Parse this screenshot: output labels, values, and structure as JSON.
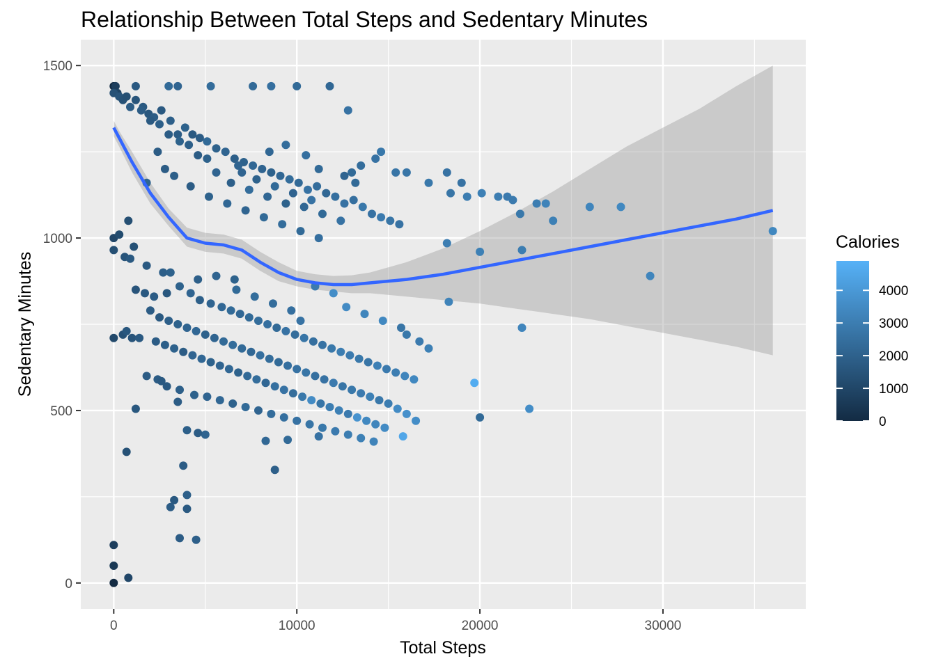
{
  "chart_data": {
    "type": "scatter",
    "title": "Relationship Between Total Steps and Sedentary Minutes",
    "xlabel": "Total Steps",
    "ylabel": "Sedentary Minutes",
    "xlim": [
      -1800,
      37800
    ],
    "ylim": [
      -75,
      1575
    ],
    "x_ticks": [
      0,
      10000,
      20000,
      30000
    ],
    "x_tick_labels": [
      "0",
      "10000",
      "20000",
      "30000"
    ],
    "y_ticks": [
      0,
      500,
      1000,
      1500
    ],
    "y_tick_labels": [
      "0",
      "500",
      "1000",
      "1500"
    ],
    "grid": true,
    "panel_background": "#ebebeb",
    "color_scale": {
      "title": "Calories",
      "low_color": "#132b43",
      "high_color": "#56b1f7",
      "min": 0,
      "max": 4900,
      "ticks": [
        0,
        1000,
        2000,
        3000,
        4000
      ],
      "tick_labels": [
        "0",
        "1000",
        "2000",
        "3000",
        "4000"
      ]
    },
    "smooth_line": {
      "color": "#3366ff",
      "x": [
        0,
        300,
        1000,
        2000,
        3000,
        4000,
        5000,
        6000,
        7000,
        8000,
        9000,
        10000,
        11000,
        12000,
        13000,
        14000,
        16000,
        18000,
        20000,
        22000,
        24000,
        26000,
        28000,
        30000,
        32000,
        34000,
        36000
      ],
      "y": [
        1320,
        1290,
        1220,
        1130,
        1060,
        1000,
        985,
        980,
        965,
        930,
        900,
        880,
        870,
        865,
        865,
        870,
        880,
        895,
        915,
        935,
        955,
        975,
        995,
        1015,
        1035,
        1055,
        1080
      ]
    },
    "confidence_band": {
      "color": "#999999",
      "x": [
        0,
        300,
        1000,
        2000,
        3000,
        4000,
        5000,
        6000,
        7000,
        8000,
        9000,
        10000,
        11000,
        12000,
        13000,
        14000,
        16000,
        18000,
        20000,
        22000,
        24000,
        26000,
        28000,
        30000,
        32000,
        34000,
        36000
      ],
      "upper": [
        1340,
        1310,
        1250,
        1160,
        1085,
        1030,
        1015,
        1010,
        995,
        960,
        930,
        905,
        895,
        890,
        892,
        900,
        930,
        970,
        1020,
        1075,
        1135,
        1200,
        1265,
        1320,
        1375,
        1440,
        1500
      ],
      "lower": [
        1295,
        1265,
        1190,
        1100,
        1035,
        975,
        960,
        955,
        940,
        905,
        875,
        860,
        850,
        845,
        840,
        840,
        830,
        820,
        810,
        795,
        780,
        765,
        745,
        725,
        705,
        685,
        660
      ]
    },
    "points": [
      [
        0,
        1440,
        0
      ],
      [
        100,
        1440,
        700
      ],
      [
        200,
        1420,
        900
      ],
      [
        0,
        1420,
        1400
      ],
      [
        300,
        1410,
        1500
      ],
      [
        500,
        1400,
        1400
      ],
      [
        700,
        1410,
        1300
      ],
      [
        900,
        1380,
        1800
      ],
      [
        1200,
        1400,
        1500
      ],
      [
        1600,
        1380,
        1700
      ],
      [
        1900,
        1360,
        1600
      ],
      [
        2200,
        1350,
        1800
      ],
      [
        2600,
        1370,
        1700
      ],
      [
        3100,
        1340,
        1900
      ],
      [
        3500,
        1300,
        1800
      ],
      [
        3900,
        1320,
        2000
      ],
      [
        4300,
        1300,
        1700
      ],
      [
        4700,
        1290,
        1800
      ],
      [
        5100,
        1280,
        2300
      ],
      [
        5600,
        1260,
        2000
      ],
      [
        6100,
        1250,
        2100
      ],
      [
        6600,
        1230,
        1900
      ],
      [
        7100,
        1220,
        2000
      ],
      [
        7600,
        1210,
        2200
      ],
      [
        8100,
        1200,
        2100
      ],
      [
        8600,
        1190,
        2000
      ],
      [
        9100,
        1180,
        2200
      ],
      [
        9600,
        1170,
        2400
      ],
      [
        10100,
        1160,
        2300
      ],
      [
        10600,
        1140,
        2600
      ],
      [
        11100,
        1150,
        2400
      ],
      [
        11600,
        1130,
        2200
      ],
      [
        12100,
        1120,
        2500
      ],
      [
        12600,
        1100,
        2600
      ],
      [
        13100,
        1110,
        2500
      ],
      [
        13600,
        1090,
        2800
      ],
      [
        14100,
        1070,
        2600
      ],
      [
        14600,
        1060,
        2900
      ],
      [
        15100,
        1050,
        2700
      ],
      [
        15600,
        1040,
        2600
      ],
      [
        2800,
        1200,
        1800
      ],
      [
        3300,
        1180,
        1900
      ],
      [
        4200,
        1150,
        1800
      ],
      [
        5200,
        1120,
        2000
      ],
      [
        6200,
        1100,
        2200
      ],
      [
        7200,
        1080,
        2100
      ],
      [
        8200,
        1060,
        2300
      ],
      [
        9200,
        1040,
        2400
      ],
      [
        10200,
        1020,
        2300
      ],
      [
        11200,
        1000,
        2500
      ],
      [
        5600,
        1190,
        2100
      ],
      [
        6400,
        1160,
        1900
      ],
      [
        7400,
        1140,
        2400
      ],
      [
        8400,
        1120,
        2200
      ],
      [
        9400,
        1100,
        2000
      ],
      [
        10400,
        1090,
        2200
      ],
      [
        11400,
        1070,
        2300
      ],
      [
        12400,
        1050,
        2600
      ],
      [
        6800,
        1210,
        2100
      ],
      [
        7800,
        1170,
        2000
      ],
      [
        8800,
        1150,
        2300
      ],
      [
        9800,
        1130,
        2100
      ],
      [
        10800,
        1110,
        2600
      ],
      [
        5100,
        1230,
        2000
      ],
      [
        4600,
        1240,
        1800
      ],
      [
        4100,
        1270,
        1900
      ],
      [
        3600,
        1280,
        2000
      ],
      [
        3000,
        1300,
        1800
      ],
      [
        2500,
        1330,
        1900
      ],
      [
        2000,
        1340,
        1700
      ],
      [
        1500,
        1370,
        1800
      ],
      [
        2400,
        1250,
        1800
      ],
      [
        1800,
        1160,
        2100
      ],
      [
        7000,
        1190,
        2100
      ],
      [
        8500,
        1250,
        2200
      ],
      [
        9400,
        1270,
        2400
      ],
      [
        10500,
        1240,
        2500
      ],
      [
        11200,
        1200,
        2300
      ],
      [
        12600,
        1180,
        2100
      ],
      [
        13200,
        1160,
        2300
      ],
      [
        14300,
        1230,
        2600
      ],
      [
        16000,
        1190,
        2700
      ],
      [
        17200,
        1160,
        2800
      ],
      [
        18400,
        1130,
        2700
      ],
      [
        19300,
        1120,
        3000
      ],
      [
        20100,
        1130,
        3100
      ],
      [
        21000,
        1120,
        3000
      ],
      [
        21800,
        1110,
        2900
      ],
      [
        22200,
        1070,
        2800
      ],
      [
        23100,
        1100,
        3000
      ],
      [
        23600,
        1100,
        3200
      ],
      [
        24000,
        1050,
        3100
      ],
      [
        26000,
        1090,
        3300
      ],
      [
        27700,
        1090,
        3400
      ],
      [
        13500,
        1210,
        2400
      ],
      [
        13000,
        1190,
        2300
      ],
      [
        14600,
        1250,
        2800
      ],
      [
        15400,
        1190,
        2700
      ],
      [
        18200,
        1190,
        2600
      ],
      [
        19000,
        1160,
        2600
      ],
      [
        21500,
        1120,
        2900
      ],
      [
        12800,
        1370,
        2600
      ],
      [
        11800,
        1440,
        2200
      ],
      [
        10000,
        1440,
        2300
      ],
      [
        8600,
        1440,
        2500
      ],
      [
        7600,
        1440,
        2300
      ],
      [
        5300,
        1440,
        2400
      ],
      [
        3500,
        1440,
        2100
      ],
      [
        3000,
        1440,
        2300
      ],
      [
        1200,
        1440,
        1700
      ],
      [
        20000,
        960,
        3100
      ],
      [
        22300,
        965,
        3000
      ],
      [
        29300,
        890,
        3300
      ],
      [
        36000,
        1020,
        3400
      ],
      [
        18200,
        985,
        3000
      ],
      [
        18300,
        815,
        3200
      ],
      [
        22300,
        740,
        3300
      ],
      [
        19700,
        580,
        4700
      ],
      [
        20000,
        480,
        2300
      ],
      [
        22700,
        505,
        3600
      ],
      [
        0,
        1000,
        1000
      ],
      [
        300,
        1010,
        1200
      ],
      [
        800,
        1050,
        1300
      ],
      [
        1100,
        975,
        1400
      ],
      [
        600,
        945,
        1500
      ],
      [
        0,
        965,
        1300
      ],
      [
        900,
        940,
        1700
      ],
      [
        1800,
        920,
        1700
      ],
      [
        2700,
        900,
        1900
      ],
      [
        3100,
        900,
        2000
      ],
      [
        1200,
        850,
        1500
      ],
      [
        1700,
        840,
        1700
      ],
      [
        2200,
        830,
        1800
      ],
      [
        2900,
        840,
        1600
      ],
      [
        3600,
        860,
        2000
      ],
      [
        4200,
        840,
        2100
      ],
      [
        4700,
        820,
        1900
      ],
      [
        5300,
        810,
        2100
      ],
      [
        5900,
        800,
        2200
      ],
      [
        6400,
        790,
        2300
      ],
      [
        6900,
        780,
        2200
      ],
      [
        7400,
        770,
        2300
      ],
      [
        7900,
        760,
        2400
      ],
      [
        8400,
        750,
        2500
      ],
      [
        8900,
        740,
        2300
      ],
      [
        9400,
        730,
        2600
      ],
      [
        9900,
        720,
        2400
      ],
      [
        10400,
        710,
        2700
      ],
      [
        10900,
        700,
        2500
      ],
      [
        11400,
        690,
        2600
      ],
      [
        11900,
        680,
        2800
      ],
      [
        12400,
        670,
        3000
      ],
      [
        12900,
        660,
        2900
      ],
      [
        13400,
        650,
        2800
      ],
      [
        13900,
        640,
        2700
      ],
      [
        14400,
        630,
        3100
      ],
      [
        14900,
        620,
        2900
      ],
      [
        15400,
        610,
        3000
      ],
      [
        15900,
        600,
        3300
      ],
      [
        16400,
        590,
        3400
      ],
      [
        2000,
        790,
        1800
      ],
      [
        2500,
        770,
        1700
      ],
      [
        3000,
        760,
        1900
      ],
      [
        3500,
        750,
        2000
      ],
      [
        4000,
        740,
        2100
      ],
      [
        4500,
        730,
        2200
      ],
      [
        5000,
        720,
        2000
      ],
      [
        5500,
        710,
        2100
      ],
      [
        6000,
        700,
        2300
      ],
      [
        6500,
        690,
        2400
      ],
      [
        7000,
        680,
        2300
      ],
      [
        7500,
        670,
        2200
      ],
      [
        8000,
        660,
        2500
      ],
      [
        8500,
        650,
        2400
      ],
      [
        9000,
        640,
        2300
      ],
      [
        9500,
        630,
        2500
      ],
      [
        10000,
        620,
        2600
      ],
      [
        10500,
        610,
        2700
      ],
      [
        11000,
        600,
        2500
      ],
      [
        11500,
        590,
        2600
      ],
      [
        12000,
        580,
        2900
      ],
      [
        12500,
        570,
        2700
      ],
      [
        13000,
        560,
        2800
      ],
      [
        13500,
        550,
        2900
      ],
      [
        14000,
        540,
        3100
      ],
      [
        14500,
        530,
        2800
      ],
      [
        15000,
        520,
        3000
      ],
      [
        15500,
        505,
        3500
      ],
      [
        16000,
        490,
        3700
      ],
      [
        16500,
        470,
        3600
      ],
      [
        1000,
        710,
        1500
      ],
      [
        500,
        720,
        1400
      ],
      [
        700,
        730,
        1600
      ],
      [
        1400,
        710,
        1700
      ],
      [
        2300,
        700,
        1800
      ],
      [
        2800,
        690,
        1900
      ],
      [
        3300,
        680,
        2000
      ],
      [
        3800,
        670,
        1800
      ],
      [
        4300,
        660,
        2100
      ],
      [
        4800,
        650,
        2200
      ],
      [
        5300,
        640,
        2000
      ],
      [
        5800,
        630,
        2100
      ],
      [
        6300,
        620,
        2200
      ],
      [
        6800,
        610,
        2000
      ],
      [
        7300,
        600,
        2300
      ],
      [
        7800,
        590,
        2400
      ],
      [
        8300,
        580,
        2200
      ],
      [
        8800,
        570,
        2500
      ],
      [
        9300,
        560,
        2600
      ],
      [
        9800,
        550,
        2400
      ],
      [
        10300,
        540,
        2800
      ],
      [
        10800,
        530,
        3500
      ],
      [
        11300,
        520,
        2700
      ],
      [
        11800,
        510,
        3000
      ],
      [
        12300,
        500,
        3100
      ],
      [
        12800,
        490,
        2900
      ],
      [
        13300,
        480,
        3800
      ],
      [
        13800,
        470,
        3400
      ],
      [
        14300,
        460,
        3300
      ],
      [
        14800,
        450,
        3500
      ],
      [
        1800,
        600,
        1800
      ],
      [
        2400,
        590,
        1800
      ],
      [
        2900,
        570,
        1700
      ],
      [
        3600,
        560,
        1900
      ],
      [
        4400,
        545,
        2000
      ],
      [
        5100,
        540,
        2100
      ],
      [
        5800,
        530,
        2200
      ],
      [
        6500,
        520,
        2000
      ],
      [
        7200,
        510,
        2300
      ],
      [
        7900,
        500,
        2100
      ],
      [
        8600,
        490,
        2400
      ],
      [
        9300,
        480,
        2500
      ],
      [
        10000,
        470,
        2600
      ],
      [
        10700,
        460,
        2700
      ],
      [
        11400,
        450,
        2800
      ],
      [
        12100,
        440,
        2900
      ],
      [
        12800,
        430,
        3000
      ],
      [
        13500,
        420,
        3100
      ],
      [
        14200,
        410,
        3200
      ],
      [
        15800,
        425,
        4500
      ],
      [
        11200,
        425,
        2600
      ],
      [
        9500,
        415,
        2300
      ],
      [
        8300,
        412,
        2200
      ],
      [
        5000,
        430,
        2100
      ],
      [
        4000,
        443,
        1900
      ],
      [
        4600,
        435,
        1800
      ],
      [
        8800,
        328,
        1900
      ],
      [
        1200,
        505,
        1600
      ],
      [
        2600,
        585,
        1700
      ],
      [
        3500,
        525,
        1800
      ],
      [
        700,
        380,
        1400
      ],
      [
        3800,
        340,
        1800
      ],
      [
        4000,
        255,
        1900
      ],
      [
        3300,
        240,
        1700
      ],
      [
        3100,
        220,
        1800
      ],
      [
        4000,
        215,
        1700
      ],
      [
        4500,
        125,
        1900
      ],
      [
        3600,
        130,
        1800
      ],
      [
        0,
        110,
        700
      ],
      [
        0,
        50,
        500
      ],
      [
        0,
        0,
        0
      ],
      [
        800,
        15,
        1000
      ],
      [
        0,
        710,
        1100
      ],
      [
        10200,
        760,
        2600
      ],
      [
        9700,
        790,
        2500
      ],
      [
        8700,
        810,
        2400
      ],
      [
        7700,
        830,
        2400
      ],
      [
        6700,
        850,
        2300
      ],
      [
        12700,
        800,
        3500
      ],
      [
        13700,
        780,
        3300
      ],
      [
        14700,
        760,
        3400
      ],
      [
        15700,
        740,
        2700
      ],
      [
        16700,
        700,
        2900
      ],
      [
        17200,
        680,
        3100
      ],
      [
        16000,
        720,
        2800
      ],
      [
        12000,
        840,
        3600
      ],
      [
        11000,
        860,
        2900
      ],
      [
        6600,
        880,
        2000
      ],
      [
        5600,
        890,
        2100
      ],
      [
        4600,
        880,
        1900
      ]
    ]
  }
}
